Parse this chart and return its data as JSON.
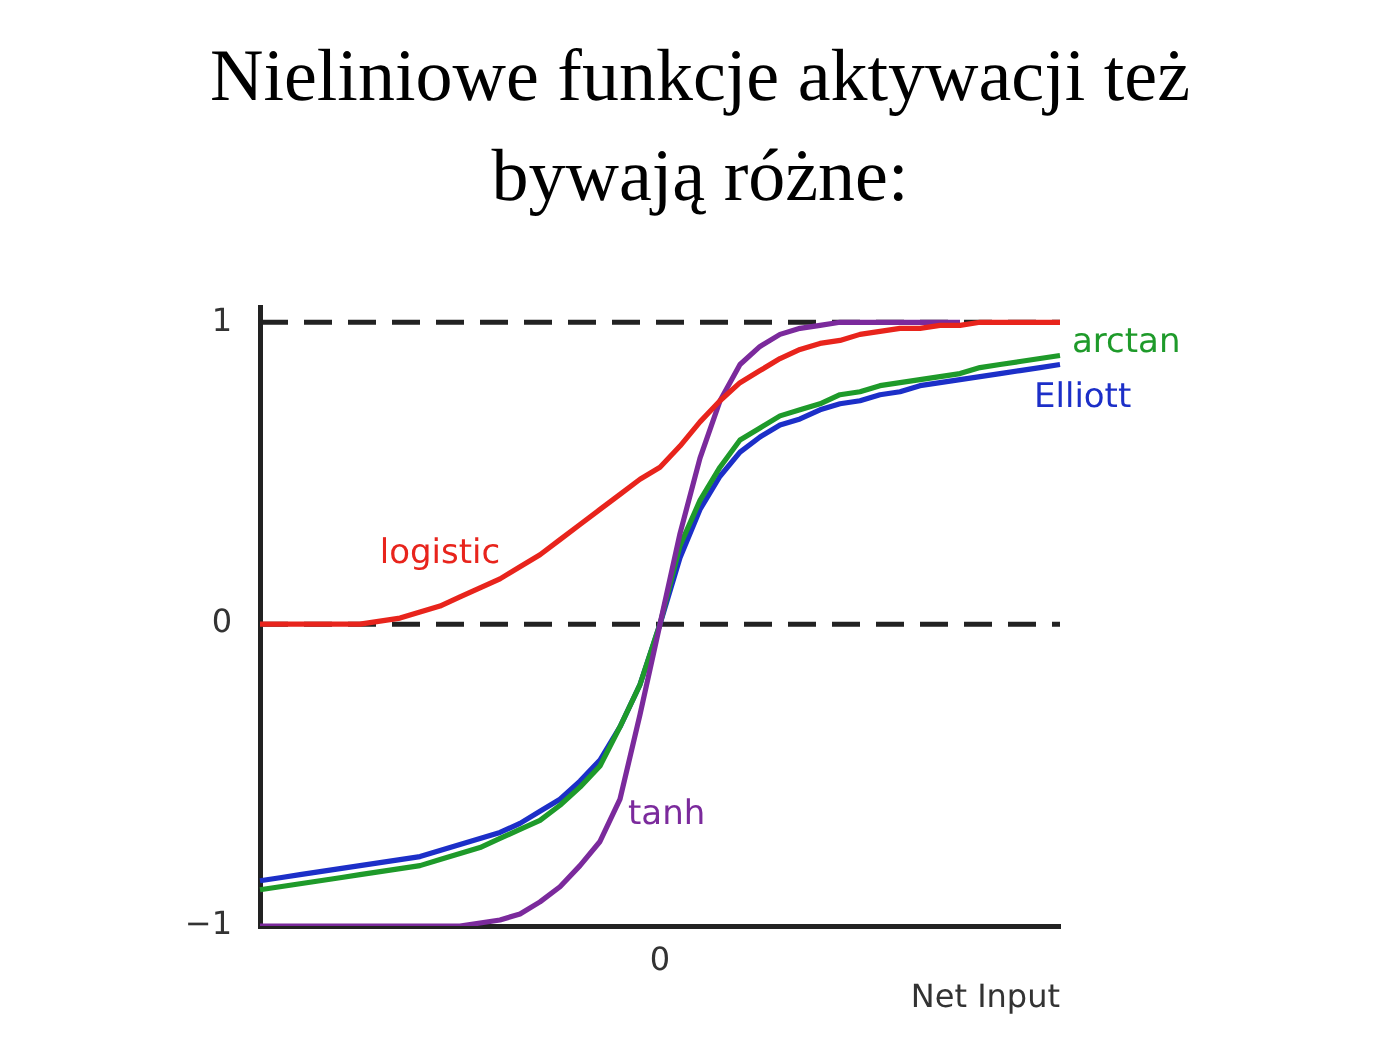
{
  "chart_data": {
    "type": "line",
    "title": "Nieliniowe funkcje aktywacji też bywają różne:",
    "xlabel": "Net Input",
    "categories": [
      null,
      null,
      null,
      null,
      null,
      null,
      null,
      null,
      null,
      null,
      null,
      null,
      null,
      null,
      null,
      null,
      null,
      null,
      null,
      null,
      "0",
      null,
      null,
      null,
      null,
      null,
      null,
      null,
      null,
      null,
      null,
      null,
      null,
      null,
      null,
      null,
      null,
      null,
      null,
      null,
      null
    ],
    "series": [
      {
        "name": "logistic",
        "color": "#e8241c",
        "values": [
          0,
          0,
          0,
          0,
          0,
          0,
          0.01,
          0.02,
          0.04,
          0.06,
          0.09,
          0.12,
          0.15,
          0.19,
          0.23,
          0.28,
          0.33,
          0.38,
          0.43,
          0.48,
          0.52,
          0.59,
          0.67,
          0.74,
          0.8,
          0.84,
          0.88,
          0.91,
          0.93,
          0.94,
          0.96,
          0.97,
          0.98,
          0.98,
          0.99,
          0.99,
          1,
          1,
          1,
          1,
          1
        ]
      },
      {
        "name": "tanh",
        "color": "#7b2a9c",
        "values": [
          -1,
          -1,
          -1,
          -1,
          -1,
          -1,
          -1,
          -1,
          -1,
          -1,
          -1,
          -0.99,
          -0.98,
          -0.96,
          -0.92,
          -0.87,
          -0.8,
          -0.72,
          -0.58,
          -0.3,
          0,
          0.3,
          0.55,
          0.74,
          0.86,
          0.92,
          0.96,
          0.98,
          0.99,
          1,
          1,
          1,
          1,
          1,
          1,
          1,
          null,
          null,
          null,
          null,
          null
        ]
      },
      {
        "name": "arctan",
        "color": "#1e9a2a",
        "values": [
          -0.88,
          -0.87,
          -0.86,
          -0.85,
          -0.84,
          -0.83,
          -0.82,
          -0.81,
          -0.8,
          -0.78,
          -0.76,
          -0.74,
          -0.71,
          -0.68,
          -0.65,
          -0.6,
          -0.54,
          -0.47,
          -0.34,
          -0.2,
          0,
          0.26,
          0.41,
          0.52,
          0.61,
          0.65,
          0.69,
          0.71,
          0.73,
          0.76,
          0.77,
          0.79,
          0.8,
          0.81,
          0.82,
          0.83,
          0.85,
          0.86,
          0.87,
          0.88,
          0.89
        ]
      },
      {
        "name": "Elliott",
        "color": "#1c2fc8",
        "values": [
          -0.85,
          -0.84,
          -0.83,
          -0.82,
          -0.81,
          -0.8,
          -0.79,
          -0.78,
          -0.77,
          -0.75,
          -0.73,
          -0.71,
          -0.69,
          -0.66,
          -0.62,
          -0.58,
          -0.52,
          -0.45,
          -0.34,
          -0.2,
          0,
          0.22,
          0.38,
          0.49,
          0.57,
          0.62,
          0.66,
          0.68,
          0.71,
          0.73,
          0.74,
          0.76,
          0.77,
          0.79,
          0.8,
          0.81,
          0.82,
          0.83,
          0.84,
          0.85,
          0.86
        ]
      }
    ],
    "ylim": [
      -1,
      1.05
    ],
    "yticks": [
      {
        "value": -1,
        "label": "−1"
      },
      0,
      1
    ],
    "ref_lines": [
      {
        "axis": "y",
        "value": 1,
        "color": "#222222",
        "line_style": "dashed"
      },
      {
        "axis": "y",
        "value": 0,
        "color": "#222222",
        "line_style": "dashed"
      }
    ],
    "grid": false,
    "legend": false,
    "marker": "none",
    "line_style": "solid"
  }
}
